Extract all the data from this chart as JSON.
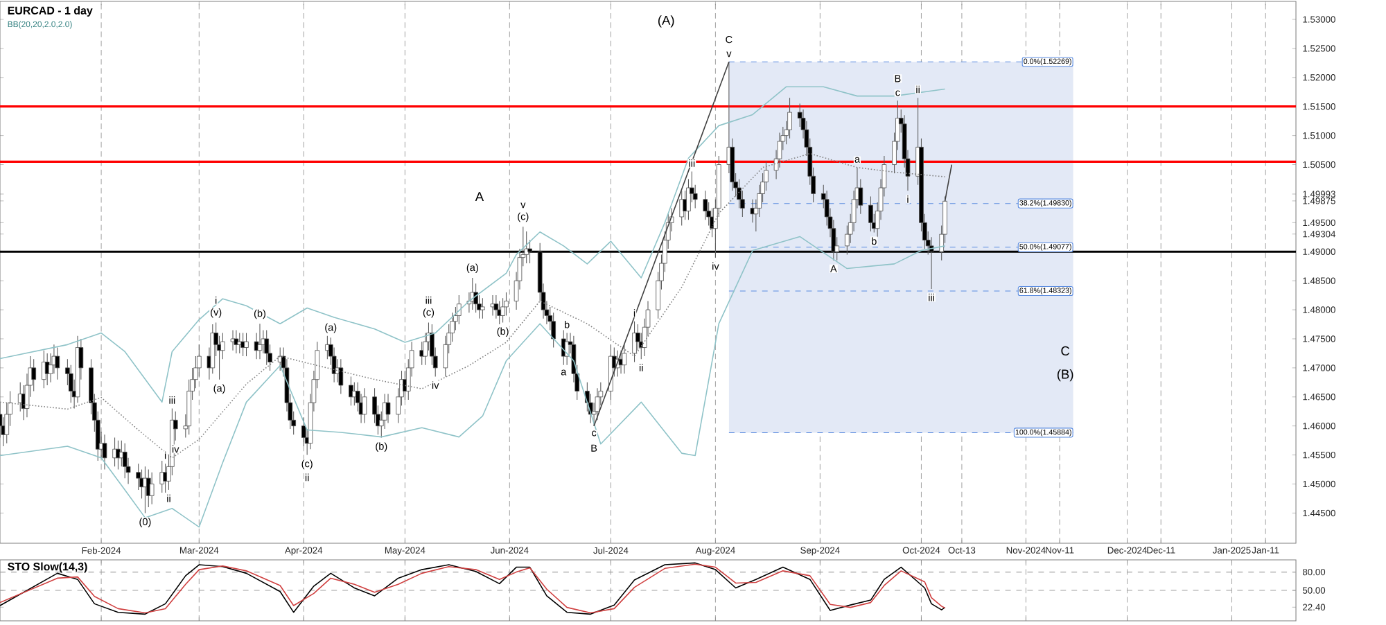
{
  "chart_data": [
    {
      "type": "candlestick",
      "title": "EURCAD - 1 day",
      "x": [
        "2024-01-02",
        "2024-01-03",
        "2024-01-04",
        "2024-01-05",
        "2024-01-08",
        "2024-01-09",
        "2024-01-10",
        "2024-01-11",
        "2024-01-12",
        "2024-01-15",
        "2024-01-16",
        "2024-01-17",
        "2024-01-18",
        "2024-01-19",
        "2024-01-22",
        "2024-01-23",
        "2024-01-24",
        "2024-01-25",
        "2024-01-26",
        "2024-01-29",
        "2024-01-30",
        "2024-01-31",
        "2024-02-01",
        "2024-02-02",
        "2024-02-05",
        "2024-02-06",
        "2024-02-07",
        "2024-02-08",
        "2024-02-09",
        "2024-02-12",
        "2024-02-13",
        "2024-02-14",
        "2024-02-15",
        "2024-02-16",
        "2024-02-19",
        "2024-02-20",
        "2024-02-21",
        "2024-02-22",
        "2024-02-23",
        "2024-02-26",
        "2024-02-27",
        "2024-02-28",
        "2024-02-29",
        "2024-03-01",
        "2024-03-04",
        "2024-03-05",
        "2024-03-06",
        "2024-03-07",
        "2024-03-08",
        "2024-03-11",
        "2024-03-12",
        "2024-03-13",
        "2024-03-14",
        "2024-03-15",
        "2024-03-18",
        "2024-03-19",
        "2024-03-20",
        "2024-03-21",
        "2024-03-22",
        "2024-03-25",
        "2024-03-26",
        "2024-03-27",
        "2024-03-28",
        "2024-03-29",
        "2024-04-01",
        "2024-04-02",
        "2024-04-03",
        "2024-04-04",
        "2024-04-05",
        "2024-04-08",
        "2024-04-09",
        "2024-04-10",
        "2024-04-11",
        "2024-04-12",
        "2024-04-15",
        "2024-04-16",
        "2024-04-17",
        "2024-04-18",
        "2024-04-19",
        "2024-04-22",
        "2024-04-23",
        "2024-04-24",
        "2024-04-25",
        "2024-04-26",
        "2024-04-29",
        "2024-04-30",
        "2024-05-01",
        "2024-05-02",
        "2024-05-03",
        "2024-05-06",
        "2024-05-07",
        "2024-05-08",
        "2024-05-09",
        "2024-05-10",
        "2024-05-13",
        "2024-05-14",
        "2024-05-15",
        "2024-05-16",
        "2024-05-17",
        "2024-05-20",
        "2024-05-21",
        "2024-05-22",
        "2024-05-23",
        "2024-05-24",
        "2024-05-27",
        "2024-05-28",
        "2024-05-29",
        "2024-05-30",
        "2024-05-31",
        "2024-06-03",
        "2024-06-04",
        "2024-06-05",
        "2024-06-06",
        "2024-06-07",
        "2024-06-10",
        "2024-06-11",
        "2024-06-12",
        "2024-06-13",
        "2024-06-14",
        "2024-06-17",
        "2024-06-18",
        "2024-06-19",
        "2024-06-20",
        "2024-06-21",
        "2024-06-24",
        "2024-06-25",
        "2024-06-26",
        "2024-06-27",
        "2024-06-28",
        "2024-07-01",
        "2024-07-02",
        "2024-07-03",
        "2024-07-04",
        "2024-07-05",
        "2024-07-08",
        "2024-07-09",
        "2024-07-10",
        "2024-07-11",
        "2024-07-12",
        "2024-07-15",
        "2024-07-16",
        "2024-07-17",
        "2024-07-18",
        "2024-07-19",
        "2024-07-22",
        "2024-07-23",
        "2024-07-24",
        "2024-07-25",
        "2024-07-26",
        "2024-07-29",
        "2024-07-30",
        "2024-07-31",
        "2024-08-01",
        "2024-08-02",
        "2024-08-05",
        "2024-08-06",
        "2024-08-07",
        "2024-08-08",
        "2024-08-09",
        "2024-08-12",
        "2024-08-13",
        "2024-08-14",
        "2024-08-15",
        "2024-08-16",
        "2024-08-19",
        "2024-08-20",
        "2024-08-21",
        "2024-08-22",
        "2024-08-23",
        "2024-08-26",
        "2024-08-27",
        "2024-08-28",
        "2024-08-29",
        "2024-08-30",
        "2024-09-02",
        "2024-09-03",
        "2024-09-04",
        "2024-09-05",
        "2024-09-06",
        "2024-09-09",
        "2024-09-10",
        "2024-09-11",
        "2024-09-12",
        "2024-09-13",
        "2024-09-16",
        "2024-09-17",
        "2024-09-18",
        "2024-09-19",
        "2024-09-20",
        "2024-09-23",
        "2024-09-24",
        "2024-09-25",
        "2024-09-26",
        "2024-09-27",
        "2024-09-30",
        "2024-10-01",
        "2024-10-02",
        "2024-10-03",
        "2024-10-04",
        "2024-10-07",
        "2024-10-08"
      ],
      "ohlc": [
        [
          1.462,
          1.464,
          1.458,
          1.46
        ],
        [
          1.46,
          1.4615,
          1.4565,
          1.4585
        ],
        [
          1.4585,
          1.464,
          1.457,
          1.462
        ],
        [
          1.462,
          1.466,
          1.46,
          1.464
        ],
        [
          1.464,
          1.4675,
          1.4625,
          1.4655
        ],
        [
          1.4655,
          1.467,
          1.461,
          1.463
        ],
        [
          1.463,
          1.469,
          1.4615,
          1.467
        ],
        [
          1.467,
          1.472,
          1.465,
          1.47
        ],
        [
          1.47,
          1.4715,
          1.466,
          1.468
        ],
        [
          1.468,
          1.473,
          1.4665,
          1.471
        ],
        [
          1.471,
          1.4725,
          1.467,
          1.469
        ],
        [
          1.469,
          1.4725,
          1.4675,
          1.4705
        ],
        [
          1.4705,
          1.474,
          1.469,
          1.472
        ],
        [
          1.472,
          1.4735,
          1.468,
          1.47
        ],
        [
          1.47,
          1.4715,
          1.467,
          1.469
        ],
        [
          1.469,
          1.4705,
          1.464,
          1.466
        ],
        [
          1.466,
          1.468,
          1.463,
          1.465
        ],
        [
          1.465,
          1.4755,
          1.464,
          1.4735
        ],
        [
          1.4735,
          1.475,
          1.468,
          1.47
        ],
        [
          1.47,
          1.4715,
          1.462,
          1.464
        ],
        [
          1.464,
          1.4655,
          1.459,
          1.461
        ],
        [
          1.461,
          1.4625,
          1.454,
          1.456
        ],
        [
          1.456,
          1.459,
          1.4545,
          1.457
        ],
        [
          1.457,
          1.4585,
          1.4525,
          1.4545
        ],
        [
          1.4545,
          1.458,
          1.453,
          1.456
        ],
        [
          1.456,
          1.4575,
          1.4525,
          1.4545
        ],
        [
          1.4545,
          1.4575,
          1.453,
          1.4555
        ],
        [
          1.4555,
          1.457,
          1.451,
          1.453
        ],
        [
          1.453,
          1.4545,
          1.45,
          1.452
        ],
        [
          1.452,
          1.4535,
          1.449,
          1.451
        ],
        [
          1.451,
          1.4525,
          1.4475,
          1.4495
        ],
        [
          1.4495,
          1.453,
          1.445,
          1.451
        ],
        [
          1.451,
          1.4525,
          1.446,
          1.448
        ],
        [
          1.448,
          1.452,
          1.4465,
          1.45
        ],
        [
          1.45,
          1.454,
          1.4485,
          1.452
        ],
        [
          1.452,
          1.4535,
          1.4485,
          1.4505
        ],
        [
          1.4505,
          1.455,
          1.449,
          1.453
        ],
        [
          1.453,
          1.463,
          1.4515,
          1.461
        ],
        [
          1.461,
          1.4625,
          1.4575,
          1.4595
        ],
        [
          1.4595,
          1.462,
          1.458,
          1.46
        ],
        [
          1.46,
          1.468,
          1.4585,
          1.466
        ],
        [
          1.466,
          1.47,
          1.4645,
          1.468
        ],
        [
          1.468,
          1.472,
          1.4665,
          1.47
        ],
        [
          1.47,
          1.474,
          1.4685,
          1.472
        ],
        [
          1.472,
          1.4735,
          1.468,
          1.47
        ],
        [
          1.47,
          1.4775,
          1.469,
          1.476
        ],
        [
          1.476,
          1.4778,
          1.472,
          1.474
        ],
        [
          1.474,
          1.4755,
          1.468,
          1.473
        ],
        [
          1.473,
          1.476,
          1.4715,
          1.4745
        ],
        [
          1.4745,
          1.4765,
          1.473,
          1.475
        ],
        [
          1.475,
          1.4765,
          1.4725,
          1.474
        ],
        [
          1.474,
          1.476,
          1.4725,
          1.4745
        ],
        [
          1.4745,
          1.476,
          1.472,
          1.4735
        ],
        [
          1.4735,
          1.476,
          1.472,
          1.4745
        ],
        [
          1.4745,
          1.476,
          1.4715,
          1.473
        ],
        [
          1.473,
          1.4776,
          1.4715,
          1.474
        ],
        [
          1.474,
          1.4765,
          1.4725,
          1.475
        ],
        [
          1.475,
          1.4765,
          1.4705,
          1.4725
        ],
        [
          1.4725,
          1.474,
          1.4695,
          1.471
        ],
        [
          1.471,
          1.4735,
          1.4695,
          1.472
        ],
        [
          1.472,
          1.4735,
          1.4685,
          1.47
        ],
        [
          1.47,
          1.4715,
          1.4625,
          1.464
        ],
        [
          1.464,
          1.4655,
          1.4595,
          1.461
        ],
        [
          1.461,
          1.4625,
          1.4585,
          1.46
        ],
        [
          1.46,
          1.4615,
          1.4565,
          1.458
        ],
        [
          1.458,
          1.4595,
          1.455,
          1.457
        ],
        [
          1.457,
          1.4655,
          1.456,
          1.464
        ],
        [
          1.464,
          1.4695,
          1.4625,
          1.468
        ],
        [
          1.468,
          1.4745,
          1.4665,
          1.473
        ],
        [
          1.473,
          1.4755,
          1.4715,
          1.474
        ],
        [
          1.474,
          1.4752,
          1.4705,
          1.472
        ],
        [
          1.472,
          1.4735,
          1.4675,
          1.469
        ],
        [
          1.469,
          1.4715,
          1.4675,
          1.47
        ],
        [
          1.47,
          1.4715,
          1.4655,
          1.467
        ],
        [
          1.467,
          1.4685,
          1.4635,
          1.465
        ],
        [
          1.465,
          1.4675,
          1.4635,
          1.466
        ],
        [
          1.466,
          1.4675,
          1.4625,
          1.464
        ],
        [
          1.464,
          1.4655,
          1.4605,
          1.462
        ],
        [
          1.462,
          1.4665,
          1.4605,
          1.465
        ],
        [
          1.465,
          1.4665,
          1.4605,
          1.462
        ],
        [
          1.462,
          1.4635,
          1.4585,
          1.46
        ],
        [
          1.46,
          1.4625,
          1.458,
          1.461
        ],
        [
          1.461,
          1.4655,
          1.4595,
          1.464
        ],
        [
          1.464,
          1.4655,
          1.4605,
          1.462
        ],
        [
          1.462,
          1.4665,
          1.4605,
          1.465
        ],
        [
          1.465,
          1.4695,
          1.4635,
          1.468
        ],
        [
          1.468,
          1.4695,
          1.4645,
          1.466
        ],
        [
          1.466,
          1.4715,
          1.4645,
          1.47
        ],
        [
          1.47,
          1.4745,
          1.4685,
          1.473
        ],
        [
          1.473,
          1.4745,
          1.4705,
          1.472
        ],
        [
          1.472,
          1.476,
          1.4705,
          1.4745
        ],
        [
          1.4745,
          1.4778,
          1.473,
          1.476
        ],
        [
          1.476,
          1.4775,
          1.4705,
          1.472
        ],
        [
          1.472,
          1.4735,
          1.4685,
          1.47
        ],
        [
          1.47,
          1.4755,
          1.4685,
          1.474
        ],
        [
          1.474,
          1.4775,
          1.4725,
          1.476
        ],
        [
          1.476,
          1.4795,
          1.4745,
          1.478
        ],
        [
          1.478,
          1.4805,
          1.4765,
          1.479
        ],
        [
          1.479,
          1.4825,
          1.4775,
          1.481
        ],
        [
          1.481,
          1.483,
          1.4795,
          1.4815
        ],
        [
          1.4815,
          1.4855,
          1.48,
          1.483
        ],
        [
          1.483,
          1.4845,
          1.4795,
          1.481
        ],
        [
          1.481,
          1.4825,
          1.4785,
          1.48
        ],
        [
          1.48,
          1.482,
          1.4785,
          1.4805
        ],
        [
          1.4805,
          1.4825,
          1.479,
          1.481
        ],
        [
          1.481,
          1.4825,
          1.4785,
          1.48
        ],
        [
          1.48,
          1.4815,
          1.4775,
          1.479
        ],
        [
          1.479,
          1.482,
          1.4778,
          1.4805
        ],
        [
          1.4805,
          1.483,
          1.479,
          1.4815
        ],
        [
          1.4815,
          1.4865,
          1.48,
          1.485
        ],
        [
          1.485,
          1.4905,
          1.4835,
          1.489
        ],
        [
          1.489,
          1.4943,
          1.4875,
          1.4895
        ],
        [
          1.4895,
          1.4935,
          1.488,
          1.4905
        ],
        [
          1.4905,
          1.492,
          1.488,
          1.49
        ],
        [
          1.49,
          1.4915,
          1.4815,
          1.483
        ],
        [
          1.483,
          1.4845,
          1.4785,
          1.48
        ],
        [
          1.48,
          1.4815,
          1.4775,
          1.479
        ],
        [
          1.479,
          1.4805,
          1.4765,
          1.478
        ],
        [
          1.478,
          1.4795,
          1.4735,
          1.475
        ],
        [
          1.475,
          1.4765,
          1.4705,
          1.472
        ],
        [
          1.472,
          1.476,
          1.4705,
          1.4745
        ],
        [
          1.4745,
          1.476,
          1.4725,
          1.474
        ],
        [
          1.474,
          1.4755,
          1.4675,
          1.469
        ],
        [
          1.469,
          1.4705,
          1.4645,
          1.466
        ],
        [
          1.466,
          1.4675,
          1.4625,
          1.464
        ],
        [
          1.464,
          1.4655,
          1.4605,
          1.462
        ],
        [
          1.462,
          1.464,
          1.46,
          1.4625
        ],
        [
          1.4625,
          1.4665,
          1.461,
          1.465
        ],
        [
          1.465,
          1.4675,
          1.4635,
          1.466
        ],
        [
          1.466,
          1.474,
          1.4645,
          1.472
        ],
        [
          1.472,
          1.4735,
          1.4685,
          1.47
        ],
        [
          1.47,
          1.473,
          1.4685,
          1.4715
        ],
        [
          1.4715,
          1.473,
          1.469,
          1.4705
        ],
        [
          1.4705,
          1.474,
          1.469,
          1.4725
        ],
        [
          1.4725,
          1.478,
          1.471,
          1.476
        ],
        [
          1.476,
          1.4775,
          1.473,
          1.4745
        ],
        [
          1.4745,
          1.476,
          1.4715,
          1.4735
        ],
        [
          1.4735,
          1.4785,
          1.472,
          1.477
        ],
        [
          1.477,
          1.4815,
          1.4755,
          1.48
        ],
        [
          1.48,
          1.4865,
          1.4785,
          1.485
        ],
        [
          1.485,
          1.4895,
          1.4835,
          1.488
        ],
        [
          1.488,
          1.4935,
          1.4865,
          1.492
        ],
        [
          1.492,
          1.4965,
          1.4905,
          1.495
        ],
        [
          1.495,
          1.4975,
          1.4935,
          1.496
        ],
        [
          1.496,
          1.5005,
          1.4945,
          1.499
        ],
        [
          1.499,
          1.5005,
          1.4955,
          1.497
        ],
        [
          1.497,
          1.5025,
          1.4955,
          1.501
        ],
        [
          1.501,
          1.5038,
          1.4985,
          1.5
        ],
        [
          1.5,
          1.5015,
          1.4975,
          1.499
        ],
        [
          1.499,
          1.5005,
          1.4955,
          1.497
        ],
        [
          1.497,
          1.4985,
          1.4945,
          1.496
        ],
        [
          1.496,
          1.4975,
          1.4925,
          1.494
        ],
        [
          1.494,
          1.499,
          1.489,
          1.4975
        ],
        [
          1.4975,
          1.5065,
          1.496,
          1.505
        ],
        [
          1.505,
          1.5227,
          1.5035,
          1.508
        ],
        [
          1.508,
          1.5095,
          1.5005,
          1.502
        ],
        [
          1.502,
          1.5035,
          1.4995,
          1.501
        ],
        [
          1.501,
          1.5025,
          1.4975,
          1.499
        ],
        [
          1.499,
          1.5005,
          1.496,
          1.4975
        ],
        [
          1.4975,
          1.499,
          1.495,
          1.4965
        ],
        [
          1.4965,
          1.499,
          1.4935,
          1.4975
        ],
        [
          1.4975,
          1.5015,
          1.496,
          1.5
        ],
        [
          1.5,
          1.5035,
          1.4985,
          1.502
        ],
        [
          1.502,
          1.5055,
          1.5005,
          1.504
        ],
        [
          1.504,
          1.5075,
          1.5025,
          1.506
        ],
        [
          1.506,
          1.5105,
          1.5045,
          1.509
        ],
        [
          1.509,
          1.5115,
          1.5075,
          1.51
        ],
        [
          1.51,
          1.5125,
          1.5085,
          1.511
        ],
        [
          1.511,
          1.5165,
          1.5095,
          1.514
        ],
        [
          1.514,
          1.5155,
          1.5115,
          1.513
        ],
        [
          1.513,
          1.5145,
          1.5095,
          1.511
        ],
        [
          1.511,
          1.5125,
          1.5065,
          1.508
        ],
        [
          1.508,
          1.5095,
          1.5015,
          1.503
        ],
        [
          1.503,
          1.5045,
          1.4985,
          1.5
        ],
        [
          1.5,
          1.5015,
          1.4975,
          1.499
        ],
        [
          1.499,
          1.5005,
          1.4945,
          1.496
        ],
        [
          1.496,
          1.4975,
          1.4925,
          1.494
        ],
        [
          1.494,
          1.4955,
          1.4885,
          1.49
        ],
        [
          1.49,
          1.4925,
          1.4885,
          1.491
        ],
        [
          1.491,
          1.4945,
          1.4895,
          1.493
        ],
        [
          1.493,
          1.4965,
          1.4915,
          1.495
        ],
        [
          1.495,
          1.5005,
          1.4935,
          1.499
        ],
        [
          1.499,
          1.5045,
          1.4975,
          1.501
        ],
        [
          1.501,
          1.5025,
          1.4965,
          1.498
        ],
        [
          1.498,
          1.4995,
          1.4935,
          1.495
        ],
        [
          1.495,
          1.4965,
          1.4933,
          1.494
        ],
        [
          1.494,
          1.4985,
          1.4925,
          1.497
        ],
        [
          1.497,
          1.5025,
          1.4955,
          1.501
        ],
        [
          1.501,
          1.5065,
          1.4995,
          1.505
        ],
        [
          1.505,
          1.5105,
          1.5035,
          1.509
        ],
        [
          1.509,
          1.516,
          1.5075,
          1.513
        ],
        [
          1.513,
          1.5145,
          1.5105,
          1.512
        ],
        [
          1.512,
          1.5135,
          1.5045,
          1.506
        ],
        [
          1.506,
          1.5075,
          1.5005,
          1.503
        ],
        [
          1.503,
          1.5165,
          1.5015,
          1.508
        ],
        [
          1.508,
          1.5095,
          1.4935,
          1.495
        ],
        [
          1.495,
          1.4965,
          1.4905,
          1.492
        ],
        [
          1.492,
          1.4935,
          1.4895,
          1.491
        ],
        [
          1.491,
          1.4925,
          1.4836,
          1.49
        ],
        [
          1.49,
          1.4945,
          1.4885,
          1.493
        ],
        [
          1.493,
          1.4995,
          1.4915,
          1.4987
        ]
      ],
      "series": [
        {
          "type": "line",
          "color": "#8fc3c8",
          "x": [
            "2024-01-02",
            "2024-01-22",
            "2024-02-01",
            "2024-02-08",
            "2024-02-19",
            "2024-02-22",
            "2024-03-01",
            "2024-03-08",
            "2024-03-15",
            "2024-03-25",
            "2024-04-02",
            "2024-04-10",
            "2024-04-22",
            "2024-05-01",
            "2024-05-10",
            "2024-05-20",
            "2024-05-31",
            "2024-06-03",
            "2024-06-10",
            "2024-06-17",
            "2024-06-24",
            "2024-07-01",
            "2024-07-10",
            "2024-07-17",
            "2024-07-24",
            "2024-08-02",
            "2024-08-12",
            "2024-08-22",
            "2024-09-02",
            "2024-09-12",
            "2024-09-23",
            "2024-10-08"
          ],
          "values": [
            1.4716,
            1.474,
            1.476,
            1.4728,
            1.4641,
            1.4728,
            1.4783,
            1.4819,
            1.4807,
            1.4776,
            1.4803,
            1.4787,
            1.4767,
            1.4744,
            1.476,
            1.4815,
            1.4863,
            1.4895,
            1.4934,
            1.491,
            1.4879,
            1.4918,
            1.4855,
            1.495,
            1.5061,
            1.5117,
            1.5136,
            1.5184,
            1.5184,
            1.5168,
            1.5168,
            1.518
          ]
        },
        {
          "type": "line",
          "color": "#808080",
          "line_style": "dotted",
          "x": [
            "2024-01-02",
            "2024-01-22",
            "2024-02-01",
            "2024-02-12",
            "2024-02-22",
            "2024-03-01",
            "2024-03-15",
            "2024-03-25",
            "2024-04-05",
            "2024-04-22",
            "2024-05-06",
            "2024-05-20",
            "2024-05-31",
            "2024-06-10",
            "2024-06-24",
            "2024-07-08",
            "2024-07-22",
            "2024-08-02",
            "2024-08-15",
            "2024-08-29",
            "2024-09-12",
            "2024-09-23",
            "2024-10-08"
          ],
          "values": [
            1.4641,
            1.4629,
            1.4649,
            1.4593,
            1.4545,
            1.4577,
            1.4672,
            1.472,
            1.4704,
            1.468,
            1.4664,
            1.4704,
            1.4744,
            1.4815,
            1.4776,
            1.472,
            1.4839,
            1.4966,
            1.5045,
            1.5069,
            1.5045,
            1.5037,
            1.5029
          ]
        },
        {
          "type": "line",
          "color": "#8fc3c8",
          "x": [
            "2024-01-02",
            "2024-01-22",
            "2024-02-01",
            "2024-02-08",
            "2024-02-14",
            "2024-02-22",
            "2024-03-01",
            "2024-03-08",
            "2024-03-15",
            "2024-03-25",
            "2024-04-02",
            "2024-04-12",
            "2024-04-24",
            "2024-05-06",
            "2024-05-17",
            "2024-05-24",
            "2024-05-31",
            "2024-06-10",
            "2024-06-20",
            "2024-06-28",
            "2024-07-10",
            "2024-07-22",
            "2024-07-26",
            "2024-08-02",
            "2024-08-12",
            "2024-08-26",
            "2024-09-09",
            "2024-09-23",
            "2024-10-01",
            "2024-10-08"
          ],
          "values": [
            1.4549,
            1.4565,
            1.4545,
            1.449,
            1.4442,
            1.4458,
            1.4426,
            1.4537,
            1.4641,
            1.4704,
            1.4593,
            1.4589,
            1.4581,
            1.4597,
            1.4581,
            1.4617,
            1.4712,
            1.4776,
            1.4712,
            1.4569,
            1.4641,
            1.4553,
            1.4549,
            1.4776,
            1.4902,
            1.4926,
            1.4871,
            1.4879,
            1.4902,
            1.491
          ]
        },
        {
          "type": "line",
          "color": "#404040",
          "x": [
            "2024-06-26",
            "2024-08-05"
          ],
          "values": [
            1.46,
            1.5227
          ]
        },
        {
          "type": "line",
          "color": "#404040",
          "x": [
            "2024-10-08",
            "2024-10-10"
          ],
          "values": [
            1.4987,
            1.505
          ]
        }
      ],
      "xlim": [
        "2024-01-02",
        "2025-01-20"
      ],
      "xticks": [
        {
          "value": "2024-02-01",
          "label": "Feb-2024"
        },
        {
          "value": "2024-03-01",
          "label": "Mar-2024"
        },
        {
          "value": "2024-04-01",
          "label": "Apr-2024"
        },
        {
          "value": "2024-05-01",
          "label": "May-2024"
        },
        {
          "value": "2024-06-01",
          "label": "Jun-2024"
        },
        {
          "value": "2024-07-01",
          "label": "Jul-2024"
        },
        {
          "value": "2024-08-01",
          "label": "Aug-2024"
        },
        {
          "value": "2024-09-01",
          "label": "Sep-2024"
        },
        {
          "value": "2024-10-01",
          "label": "Oct-2024"
        },
        {
          "value": "2024-10-13",
          "label": "Oct-13"
        },
        {
          "value": "2024-11-01",
          "label": "Nov-2024"
        },
        {
          "value": "2024-11-11",
          "label": "Nov-11"
        },
        {
          "value": "2024-12-01",
          "label": "Dec-2024"
        },
        {
          "value": "2024-12-11",
          "label": "Dec-11"
        },
        {
          "value": "2025-01-01",
          "label": "Jan-2025"
        },
        {
          "value": "2025-01-11",
          "label": "Jan-11"
        }
      ],
      "ylim": [
        1.4398,
        1.5331
      ],
      "yticks": [
        {
          "value": 1.445,
          "label": "1.44500"
        },
        {
          "value": 1.45,
          "label": "1.45000"
        },
        {
          "value": 1.455,
          "label": "1.45500"
        },
        {
          "value": 1.46,
          "label": "1.46000"
        },
        {
          "value": 1.465,
          "label": "1.46500"
        },
        {
          "value": 1.47,
          "label": "1.47000"
        },
        {
          "value": 1.475,
          "label": "1.47500"
        },
        {
          "value": 1.48,
          "label": "1.48000"
        },
        {
          "value": 1.485,
          "label": "1.48500"
        },
        {
          "value": 1.49,
          "label": "1.49000"
        },
        {
          "value": 1.49304,
          "label": "1.49304"
        },
        {
          "value": 1.495,
          "label": "1.49500"
        },
        {
          "value": 1.49875,
          "label": "1.49875"
        },
        {
          "value": 1.49993,
          "label": "1.49993"
        },
        {
          "value": 1.505,
          "label": "1.50500"
        },
        {
          "value": 1.51,
          "label": "1.51000"
        },
        {
          "value": 1.515,
          "label": "1.51500"
        },
        {
          "value": 1.52,
          "label": "1.52000"
        },
        {
          "value": 1.525,
          "label": "1.52500"
        },
        {
          "value": 1.53,
          "label": "1.53000"
        }
      ],
      "grid": "x",
      "bands": [
        {
          "axis": "x",
          "from": "2024-08-05",
          "to": "2024-11-15",
          "color": "#e3e9f6"
        }
      ],
      "ref_lines": [
        {
          "axis": "y",
          "value": 1.515,
          "color": "#ff0000"
        },
        {
          "axis": "y",
          "value": 1.5055,
          "color": "#ff0000"
        },
        {
          "axis": "y",
          "value": 1.49,
          "color": "#000000"
        },
        {
          "axis": "y",
          "value": 1.52269,
          "label": "0.0%(1.52269)",
          "color": "#5b8ce0",
          "line_style": "dashed"
        },
        {
          "axis": "y",
          "value": 1.4983,
          "label": "38.2%(1.49830)",
          "color": "#5b8ce0",
          "line_style": "dashed"
        },
        {
          "axis": "y",
          "value": 1.49077,
          "label": "50.0%(1.49077)",
          "color": "#5b8ce0",
          "line_style": "dashed"
        },
        {
          "axis": "y",
          "value": 1.48323,
          "label": "61.8%(1.48323)",
          "color": "#5b8ce0",
          "line_style": "dashed"
        },
        {
          "axis": "y",
          "value": 1.45884,
          "label": "100.0%(1.45884)",
          "color": "#5b8ce0",
          "line_style": "dashed"
        }
      ],
      "annotations": [
        "BB(20,20,2.0,2.0)",
        {
          "text": "(0)",
          "x": "2024-02-14",
          "y": 1.445
        },
        {
          "text": "i",
          "x": "2024-02-20",
          "y": 1.4535
        },
        {
          "text": "ii",
          "x": "2024-02-21",
          "y": 1.449
        },
        {
          "text": "iii",
          "x": "2024-02-22",
          "y": 1.463
        },
        {
          "text": "iv",
          "x": "2024-02-23",
          "y": 1.4575
        },
        {
          "text": "(v)",
          "x": "2024-03-06",
          "y": 1.4778
        },
        {
          "text": "i",
          "x": "2024-03-06",
          "y": 1.4778
        },
        {
          "text": "(a)",
          "x": "2024-03-07",
          "y": 1.468
        },
        {
          "text": "(b)",
          "x": "2024-03-19",
          "y": 1.4776
        },
        {
          "text": "(c)",
          "x": "2024-04-02",
          "y": 1.455
        },
        {
          "text": "ii",
          "x": "2024-04-02",
          "y": 1.455
        },
        {
          "text": "(a)",
          "x": "2024-04-09",
          "y": 1.4752
        },
        {
          "text": "(b)",
          "x": "2024-04-24",
          "y": 1.458
        },
        {
          "text": "(c)",
          "x": "2024-05-08",
          "y": 1.4778
        },
        {
          "text": "iii",
          "x": "2024-05-08",
          "y": 1.4778
        },
        {
          "text": "iv",
          "x": "2024-05-10",
          "y": 1.4685
        },
        {
          "text": "(a)",
          "x": "2024-05-21",
          "y": 1.4855
        },
        {
          "text": "(b)",
          "x": "2024-05-30",
          "y": 1.4778
        },
        {
          "text": "(c)",
          "x": "2024-06-05",
          "y": 1.4943
        },
        {
          "text": "v",
          "x": "2024-06-05",
          "y": 1.4943
        },
        {
          "text": "a",
          "x": "2024-06-17",
          "y": 1.4705
        },
        {
          "text": "b",
          "x": "2024-06-18",
          "y": 1.476
        },
        {
          "text": "c",
          "x": "2024-06-26",
          "y": 1.46
        },
        {
          "text": "B",
          "x": "2024-06-26",
          "y": 1.46
        },
        {
          "text": "i",
          "x": "2024-07-08",
          "y": 1.478
        },
        {
          "text": "ii",
          "x": "2024-07-10",
          "y": 1.4715
        },
        {
          "text": "iii",
          "x": "2024-07-25",
          "y": 1.5038
        },
        {
          "text": "iv",
          "x": "2024-08-01",
          "y": 1.489
        },
        {
          "text": "v",
          "x": "2024-08-05",
          "y": 1.5227
        },
        {
          "text": "C",
          "x": "2024-08-05",
          "y": 1.5227
        },
        {
          "text": "A",
          "x": "2024-09-05",
          "y": 1.4885
        },
        {
          "text": "a",
          "x": "2024-09-12",
          "y": 1.5045
        },
        {
          "text": "b",
          "x": "2024-09-17",
          "y": 1.4933
        },
        {
          "text": "c",
          "x": "2024-09-24",
          "y": 1.516
        },
        {
          "text": "B",
          "x": "2024-09-24",
          "y": 1.516
        },
        {
          "text": "i",
          "x": "2024-09-27",
          "y": 1.5005
        },
        {
          "text": "ii",
          "x": "2024-09-30",
          "y": 1.5165
        },
        {
          "text": "iii",
          "x": "2024-10-04",
          "y": 1.4836
        },
        "C",
        "(B)",
        "A",
        "(A)"
      ]
    },
    {
      "type": "line",
      "title": "STO Slow(14,3)",
      "x": [
        "2024-01-02",
        "2024-01-19",
        "2024-01-25",
        "2024-01-30",
        "2024-02-06",
        "2024-02-14",
        "2024-02-20",
        "2024-02-26",
        "2024-03-01",
        "2024-03-08",
        "2024-03-15",
        "2024-03-25",
        "2024-03-29",
        "2024-04-04",
        "2024-04-09",
        "2024-04-16",
        "2024-04-22",
        "2024-04-29",
        "2024-05-06",
        "2024-05-14",
        "2024-05-22",
        "2024-05-29",
        "2024-06-03",
        "2024-06-07",
        "2024-06-12",
        "2024-06-18",
        "2024-06-25",
        "2024-07-02",
        "2024-07-08",
        "2024-07-17",
        "2024-07-26",
        "2024-08-01",
        "2024-08-07",
        "2024-08-13",
        "2024-08-21",
        "2024-08-29",
        "2024-09-04",
        "2024-09-10",
        "2024-09-16",
        "2024-09-20",
        "2024-09-25",
        "2024-10-02",
        "2024-10-04",
        "2024-10-07",
        "2024-10-08"
      ],
      "series": [
        {
          "color": "#000000",
          "values": [
            25,
            78,
            68,
            28,
            14,
            11,
            28,
            74,
            92,
            89,
            78,
            48,
            14,
            57,
            78,
            54,
            41,
            70,
            84,
            92,
            81,
            61,
            88,
            88,
            41,
            14,
            11,
            26,
            67,
            92,
            95,
            84,
            54,
            68,
            88,
            68,
            17,
            26,
            34,
            68,
            88,
            54,
            28,
            18,
            22
          ]
        },
        {
          "color": "#d04040",
          "values": [
            30,
            70,
            72,
            40,
            20,
            13,
            20,
            60,
            84,
            90,
            82,
            58,
            25,
            45,
            70,
            60,
            47,
            60,
            78,
            89,
            84,
            68,
            80,
            87,
            52,
            22,
            13,
            20,
            55,
            86,
            93,
            88,
            62,
            63,
            82,
            74,
            27,
            22,
            30,
            58,
            82,
            64,
            38,
            24,
            21
          ]
        }
      ],
      "xlim": [
        "2024-01-02",
        "2025-01-20"
      ],
      "xticks": [
        {
          "value": "2024-02-01",
          "label": null
        },
        {
          "value": "2024-03-01",
          "label": null
        },
        {
          "value": "2024-04-01",
          "label": null
        },
        {
          "value": "2024-05-01",
          "label": null
        },
        {
          "value": "2024-06-01",
          "label": null
        },
        {
          "value": "2024-07-01",
          "label": null
        },
        {
          "value": "2024-08-01",
          "label": null
        },
        {
          "value": "2024-09-01",
          "label": null
        },
        {
          "value": "2024-10-01",
          "label": null
        },
        {
          "value": "2024-11-01",
          "label": null
        },
        {
          "value": "2024-12-01",
          "label": null
        },
        {
          "value": "2025-01-01",
          "label": null
        }
      ],
      "tick_labels": "y",
      "ylim": [
        0,
        100
      ],
      "yticks": [
        {
          "value": 22.4,
          "label": "22.40"
        },
        {
          "value": 50,
          "label": "50.00"
        },
        {
          "value": 80,
          "label": "80.00"
        }
      ],
      "grid": "x",
      "ref_lines": [
        {
          "axis": "y",
          "value": 50,
          "color": "#a0a0a0",
          "line_style": "dashed"
        },
        {
          "axis": "y",
          "value": 80,
          "color": "#a0a0a0",
          "line_style": "dashed"
        }
      ]
    }
  ]
}
